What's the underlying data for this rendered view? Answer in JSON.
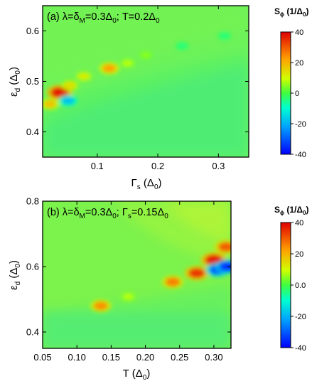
{
  "chart_data": [
    {
      "type": "heatmap",
      "panel": "a",
      "annotation": {
        "label": "(a) ",
        "p1": "λ=δ",
        "s1": "M",
        "p2": "=0.3Δ",
        "s2": "0",
        "p3": "; T=0.2Δ",
        "s3": "0"
      },
      "xlabel": {
        "main": "Γ",
        "sub": "s",
        "unit": " (Δ",
        "unit_sub": "0",
        "close": ")"
      },
      "ylabel": {
        "main": "ε",
        "sub": "d",
        "unit": " (Δ",
        "unit_sub": "0",
        "close": ")"
      },
      "xlim": [
        0.01,
        0.35
      ],
      "ylim": [
        0.35,
        0.65
      ],
      "xticks": [
        {
          "v": 0.1,
          "label": "0.1"
        },
        {
          "v": 0.2,
          "label": "0.2"
        },
        {
          "v": 0.3,
          "label": "0.3"
        }
      ],
      "yticks": [
        {
          "v": 0.4,
          "label": "0.4"
        },
        {
          "v": 0.5,
          "label": "0.5"
        },
        {
          "v": 0.6,
          "label": "0.6"
        }
      ],
      "colorbar": {
        "title": "S",
        "title_sub": "ϕ",
        "unit": " (1/Δ",
        "unit_sub": "0",
        "close": ")",
        "range": [
          -40,
          40
        ],
        "ticks": [
          {
            "v": 40,
            "label": "40"
          },
          {
            "v": 20,
            "label": "20"
          },
          {
            "v": 0,
            "label": "0"
          },
          {
            "v": -20,
            "label": "-20"
          },
          {
            "v": -40,
            "label": "-40"
          }
        ]
      },
      "features": [
        {
          "x": 0.022,
          "y": 0.455,
          "value": 18
        },
        {
          "x": 0.038,
          "y": 0.478,
          "value": 38
        },
        {
          "x": 0.052,
          "y": 0.462,
          "value": -18
        },
        {
          "x": 0.055,
          "y": 0.492,
          "value": 14
        },
        {
          "x": 0.078,
          "y": 0.51,
          "value": 12
        },
        {
          "x": 0.12,
          "y": 0.526,
          "value": 22
        },
        {
          "x": 0.15,
          "y": 0.536,
          "value": 8
        },
        {
          "x": 0.18,
          "y": 0.552,
          "value": 5
        },
        {
          "x": 0.24,
          "y": 0.57,
          "value": -4
        },
        {
          "x": 0.31,
          "y": 0.59,
          "value": -4
        }
      ]
    },
    {
      "type": "heatmap",
      "panel": "b",
      "annotation": {
        "label": "(b) ",
        "p1": "λ=δ",
        "s1": "M",
        "p2": "=0.3Δ",
        "s2": "0",
        "p3": "; Γ",
        "s3": "s",
        "p4": "=0.15Δ",
        "s4": "0"
      },
      "xlabel": {
        "main": "T",
        "sub": "",
        "unit": " (Δ",
        "unit_sub": "0",
        "close": ")"
      },
      "ylabel": {
        "main": "ε",
        "sub": "d",
        "unit": " (Δ",
        "unit_sub": "0",
        "close": ")"
      },
      "xlim": [
        0.05,
        0.325
      ],
      "ylim": [
        0.35,
        0.8
      ],
      "xticks": [
        {
          "v": 0.05,
          "label": "0.05"
        },
        {
          "v": 0.1,
          "label": "0.10"
        },
        {
          "v": 0.15,
          "label": "0.15"
        },
        {
          "v": 0.2,
          "label": "0.20"
        },
        {
          "v": 0.25,
          "label": "0.25"
        },
        {
          "v": 0.3,
          "label": "0.30"
        }
      ],
      "yticks": [
        {
          "v": 0.4,
          "label": "0.4"
        },
        {
          "v": 0.6,
          "label": "0.6"
        },
        {
          "v": 0.8,
          "label": "0.8"
        }
      ],
      "colorbar": {
        "title": "S",
        "title_sub": "ϕ",
        "unit": " (1/Δ",
        "unit_sub": "0",
        "close": ")",
        "range": [
          -40,
          40
        ],
        "ticks": [
          {
            "v": 40,
            "label": "40"
          },
          {
            "v": 20,
            "label": "20"
          },
          {
            "v": 0,
            "label": "0.0"
          },
          {
            "v": -20,
            "label": "-20"
          },
          {
            "v": -40,
            "label": "-40"
          }
        ]
      },
      "features": [
        {
          "x": 0.135,
          "y": 0.48,
          "value": 24
        },
        {
          "x": 0.175,
          "y": 0.508,
          "value": 8
        },
        {
          "x": 0.24,
          "y": 0.553,
          "value": 26
        },
        {
          "x": 0.275,
          "y": 0.58,
          "value": 34
        },
        {
          "x": 0.3,
          "y": 0.62,
          "value": 38
        },
        {
          "x": 0.318,
          "y": 0.66,
          "value": 30
        },
        {
          "x": 0.305,
          "y": 0.59,
          "value": -30
        },
        {
          "x": 0.32,
          "y": 0.6,
          "value": -34
        }
      ]
    }
  ]
}
